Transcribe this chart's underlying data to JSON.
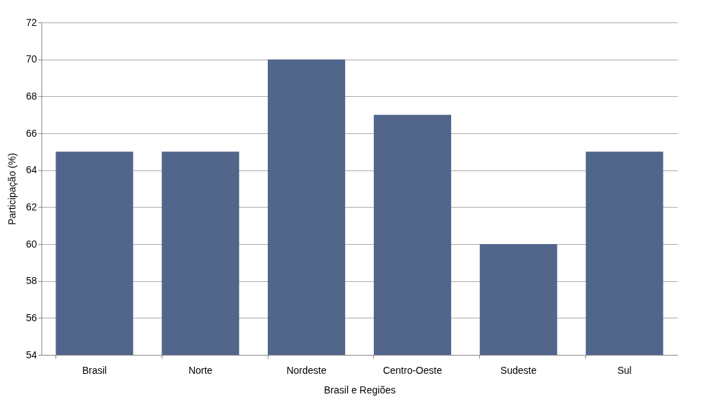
{
  "chart_data": {
    "type": "bar",
    "xlabel": "Brasil e Regiões",
    "ylabel": "Participação (%)",
    "categories": [
      "Brasil",
      "Norte",
      "Nordeste",
      "Centro-Oeste",
      "Sudeste",
      "Sul"
    ],
    "values": [
      65,
      65,
      70,
      67,
      60,
      65
    ],
    "color": "#52668c",
    "ylim": [
      54,
      72
    ],
    "yticks": [
      54,
      56,
      58,
      60,
      62,
      64,
      66,
      68,
      70,
      72
    ],
    "grid": "y",
    "legend": false
  }
}
